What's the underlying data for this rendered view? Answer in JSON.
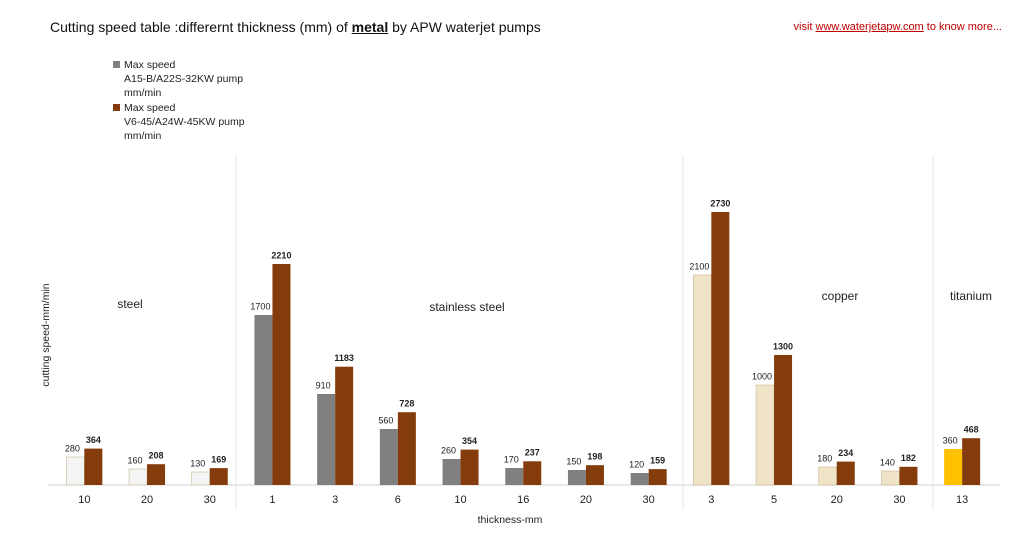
{
  "chart_data": {
    "type": "bar",
    "title": [
      "Cutting speed table :differernt thickness (mm) of ",
      "metal",
      " by APW waterjet pumps"
    ],
    "link": [
      "visit ",
      "www.waterjetapw.com",
      " to know more..."
    ],
    "y_label": "cutting speed-mm/min",
    "x_label": "thickness-mm",
    "groups": [
      "steel",
      "stainless steel",
      "copper",
      "titanium"
    ],
    "categories": [
      "10",
      "20",
      "30",
      "1",
      "3",
      "6",
      "10",
      "16",
      "20",
      "30",
      "3",
      "5",
      "20",
      "30",
      "13"
    ],
    "series": [
      {
        "name": "Max speed\nA15-B/A22S-32KW   pump\nmm/min",
        "color": "#808080",
        "colors": [
          "#f4f4f4",
          "#f4f4f4",
          "#f4f4f4",
          "#808080",
          "#808080",
          "#808080",
          "#808080",
          "#808080",
          "#808080",
          "#808080",
          "#efe4c8",
          "#efe4c8",
          "#efe4c8",
          "#efe4c8",
          "#ffc000"
        ],
        "values": [
          280,
          160,
          130,
          1700,
          910,
          560,
          260,
          170,
          150,
          120,
          2100,
          1000,
          180,
          140,
          360
        ]
      },
      {
        "name": "Max speed\nV6-45/A24W-45KW  pump\nmm/min",
        "color": "#843c0c",
        "values": [
          364,
          208,
          169,
          2210,
          1183,
          728,
          354,
          237,
          198,
          159,
          2730,
          1300,
          234,
          182,
          468
        ]
      }
    ],
    "ylim": [
      0,
      3300
    ]
  }
}
